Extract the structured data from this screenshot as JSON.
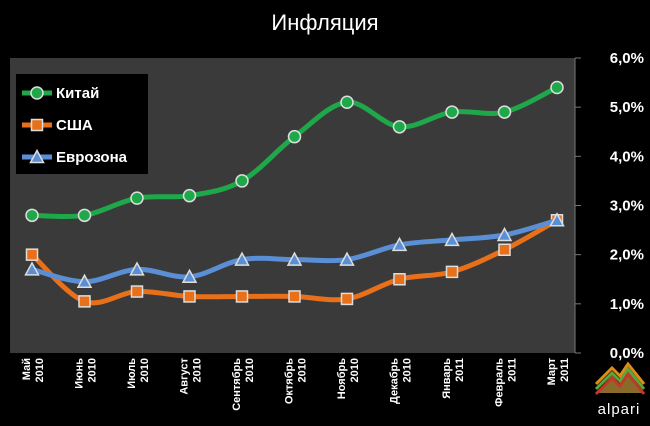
{
  "chart_data": {
    "type": "line",
    "title": "Инфляция",
    "categories": [
      [
        "Май",
        "2010"
      ],
      [
        "Июнь",
        "2010"
      ],
      [
        "Июль",
        "2010"
      ],
      [
        "Август",
        "2010"
      ],
      [
        "Сентябрь",
        "2010"
      ],
      [
        "Октябрь",
        "2010"
      ],
      [
        "Ноябрь",
        "2010"
      ],
      [
        "Декабрь",
        "2010"
      ],
      [
        "Январь",
        "2011"
      ],
      [
        "Февраль",
        "2011"
      ],
      [
        "Март",
        "2011"
      ]
    ],
    "ylim": [
      0,
      6
    ],
    "yticks": [
      "0,0%",
      "1,0%",
      "2,0%",
      "3,0%",
      "4,0%",
      "5,0%",
      "6,0%"
    ],
    "y_axis_position": "right",
    "grid": false,
    "legend_position": "top-left",
    "series": [
      {
        "name": "Китай",
        "color": "#1fa84a",
        "marker": "circle",
        "values": [
          2.8,
          2.8,
          3.15,
          3.2,
          3.5,
          4.4,
          5.1,
          4.6,
          4.9,
          4.9,
          5.4
        ]
      },
      {
        "name": "США",
        "color": "#e8701a",
        "marker": "square",
        "values": [
          2.0,
          1.05,
          1.25,
          1.15,
          1.15,
          1.15,
          1.1,
          1.5,
          1.65,
          2.1,
          2.7
        ]
      },
      {
        "name": "Еврозона",
        "color": "#5a8fd6",
        "marker": "triangle",
        "values": [
          1.7,
          1.45,
          1.7,
          1.55,
          1.9,
          1.9,
          1.9,
          2.2,
          2.3,
          2.4,
          2.7
        ]
      }
    ]
  },
  "logo": {
    "text": "alpari"
  }
}
